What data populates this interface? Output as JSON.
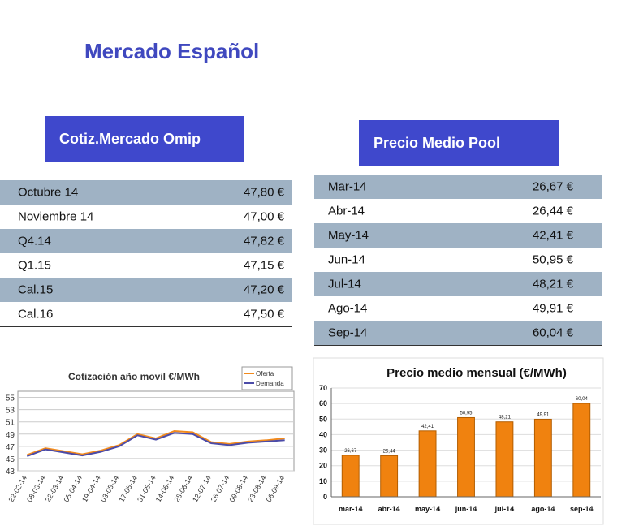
{
  "header": {
    "title": "Mercado Español"
  },
  "tables": [
    {
      "title": "Cotiz.Mercado Omip",
      "rows": [
        [
          "Octubre 14",
          "47,80 €"
        ],
        [
          "Noviembre 14",
          "47,00 €"
        ],
        [
          "Q4.14",
          "47,82 €"
        ],
        [
          "Q1.15",
          "47,15 €"
        ],
        [
          "Cal.15",
          "47,20 €"
        ],
        [
          "Cal.16",
          "47,50 €"
        ]
      ]
    },
    {
      "title": "Precio Medio Pool",
      "rows": [
        [
          "Mar-14",
          "26,67 €"
        ],
        [
          "Abr-14",
          "26,44 €"
        ],
        [
          "May-14",
          "42,41 €"
        ],
        [
          "Jun-14",
          "50,95 €"
        ],
        [
          "Jul-14",
          "48,21 €"
        ],
        [
          "Ago-14",
          "49,91 €"
        ],
        [
          "Sep-14",
          "60,04 €"
        ]
      ]
    }
  ],
  "chart_data": [
    {
      "type": "line",
      "title": "Cotización año movil €/MWh",
      "categories": [
        "22-02-14",
        "08-03-14",
        "22-03-14",
        "05-04-14",
        "19-04-14",
        "03-05-14",
        "17-05-14",
        "31-05-14",
        "14-06-14",
        "28-06-14",
        "12-07-14",
        "26-07-14",
        "09-08-14",
        "23-08-14",
        "06-09-14"
      ],
      "series": [
        {
          "name": "Oferta",
          "color": "#f28a1c",
          "values": [
            45.6,
            46.7,
            46.2,
            45.7,
            46.3,
            47.2,
            49.0,
            48.3,
            49.5,
            49.3,
            47.7,
            47.4,
            47.8,
            48.0,
            48.3
          ]
        },
        {
          "name": "Demanda",
          "color": "#4b4ba8",
          "values": [
            45.4,
            46.5,
            46.0,
            45.5,
            46.1,
            47.0,
            48.8,
            48.1,
            49.2,
            49.0,
            47.5,
            47.2,
            47.6,
            47.8,
            48.0
          ]
        }
      ],
      "ylim": [
        43,
        56
      ],
      "yticks": [
        43,
        45,
        47,
        49,
        51,
        53,
        55
      ],
      "grid": true,
      "legend": "top-right"
    },
    {
      "type": "bar",
      "title": "Precio medio mensual (€/MWh)",
      "categories": [
        "mar-14",
        "abr-14",
        "may-14",
        "jun-14",
        "jul-14",
        "ago-14",
        "sep-14"
      ],
      "values": [
        26.67,
        26.44,
        42.41,
        50.95,
        48.21,
        49.91,
        60.04
      ],
      "value_labels": [
        "26,67",
        "26,44",
        "42,41",
        "50,95",
        "48,21",
        "49,91",
        "60,04"
      ],
      "color": "#f0820f",
      "ylim": [
        0,
        70
      ],
      "yticks": [
        0,
        10,
        20,
        30,
        40,
        50,
        60,
        70
      ],
      "grid": true
    }
  ]
}
